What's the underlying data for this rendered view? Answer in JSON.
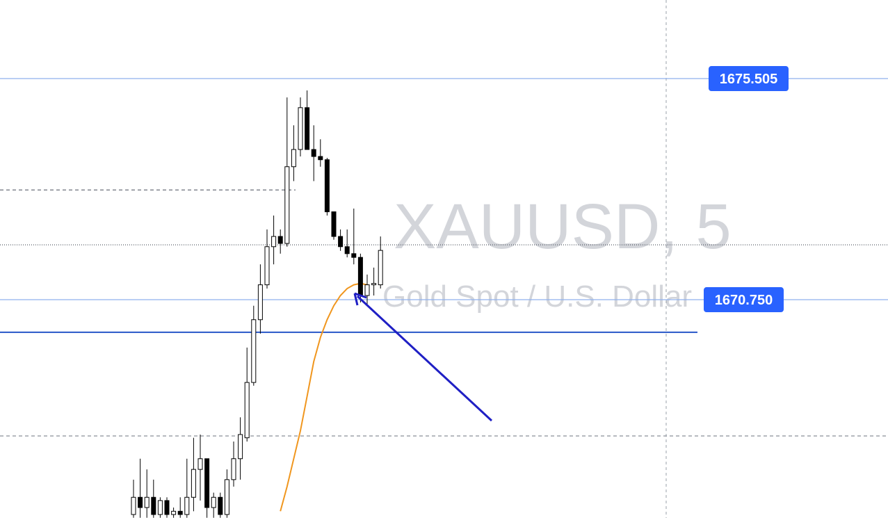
{
  "chart_data": {
    "type": "candlestick",
    "title": "XAUUSD, 5",
    "subtitle": "Gold Spot / U.S. Dollar",
    "ylim": [
      1666.055,
      1677.195
    ],
    "up_color": "#ffffff",
    "down_color": "#000000",
    "open": [
      1666.13,
      1666.5,
      1666.28,
      1666.5,
      1666.13,
      1666.43,
      1666.13,
      1666.2,
      1666.13,
      1666.5,
      1667.1,
      1667.33,
      1666.28,
      1666.5,
      1666.13,
      1666.88,
      1667.33,
      1667.78,
      1668.97,
      1670.32,
      1671.07,
      1671.89,
      1672.11,
      1671.96,
      1673.61,
      1673.98,
      1674.88,
      1673.98,
      1673.83,
      1673.76,
      1672.64,
      1672.11,
      1671.89,
      1671.74,
      1671.66,
      1670.84,
      1671.07,
      1671.07
    ],
    "high": [
      1666.88,
      1667.33,
      1667.1,
      1666.88,
      1666.5,
      1666.5,
      1666.28,
      1666.5,
      1667.33,
      1667.78,
      1667.85,
      1667.33,
      1666.6,
      1666.6,
      1667.1,
      1667.7,
      1668.22,
      1669.72,
      1670.62,
      1671.51,
      1672.26,
      1672.56,
      1672.26,
      1675.1,
      1674.5,
      1675.1,
      1675.25,
      1674.5,
      1674.2,
      1673.8,
      1672.64,
      1672.26,
      1672.26,
      1672.71,
      1671.74,
      1671.29,
      1671.44,
      1672.11
    ],
    "low": [
      1666.06,
      1666.06,
      1666.06,
      1666.06,
      1666.06,
      1666.06,
      1666.06,
      1666.06,
      1666.06,
      1666.2,
      1666.43,
      1666.06,
      1666.06,
      1666.06,
      1666.06,
      1666.73,
      1666.88,
      1667.7,
      1668.9,
      1670.02,
      1670.99,
      1671.51,
      1671.74,
      1671.89,
      1673.3,
      1673.83,
      1673.98,
      1673.3,
      1673.61,
      1672.56,
      1672.04,
      1671.8,
      1671.66,
      1671.51,
      1670.69,
      1670.62,
      1670.84,
      1670.99
    ],
    "close": [
      1666.5,
      1666.28,
      1666.5,
      1666.13,
      1666.43,
      1666.13,
      1666.2,
      1666.13,
      1666.5,
      1667.1,
      1667.33,
      1666.28,
      1666.5,
      1666.13,
      1666.88,
      1667.33,
      1667.85,
      1668.97,
      1670.32,
      1671.07,
      1671.89,
      1672.11,
      1671.96,
      1673.61,
      1673.98,
      1674.88,
      1673.98,
      1673.83,
      1673.76,
      1672.64,
      1672.11,
      1671.89,
      1671.74,
      1671.66,
      1670.84,
      1671.07,
      1671.1,
      1671.81
    ],
    "ema": {
      "color": "#f0961e",
      "values": [
        null,
        null,
        null,
        null,
        null,
        null,
        null,
        null,
        null,
        null,
        null,
        null,
        null,
        null,
        null,
        null,
        null,
        null,
        null,
        null,
        null,
        null,
        1666.2,
        1666.73,
        1667.33,
        1667.93,
        1668.67,
        1669.42,
        1669.94,
        1670.32,
        1670.62,
        1670.84,
        1670.99,
        1671.07,
        1671.1,
        1671.07,
        null,
        null
      ]
    },
    "price_lines": [
      {
        "value": 1675.505,
        "label": "1675.505",
        "color": "#8fb0ee",
        "style": "solid"
      },
      {
        "value": 1670.75,
        "label": "1670.750",
        "color": "#8fb0ee",
        "style": "solid"
      },
      {
        "value": 1670.05,
        "color": "#2756c8",
        "style": "solid"
      },
      {
        "value": 1673.11,
        "color": "#5a5f6a",
        "style": "dashed"
      },
      {
        "value": 1671.93,
        "color": "#555b66",
        "style": "dotted"
      },
      {
        "value": 1667.82,
        "color": "#8a8f99",
        "style": "dashed"
      }
    ],
    "label_color": "#2962ff"
  }
}
